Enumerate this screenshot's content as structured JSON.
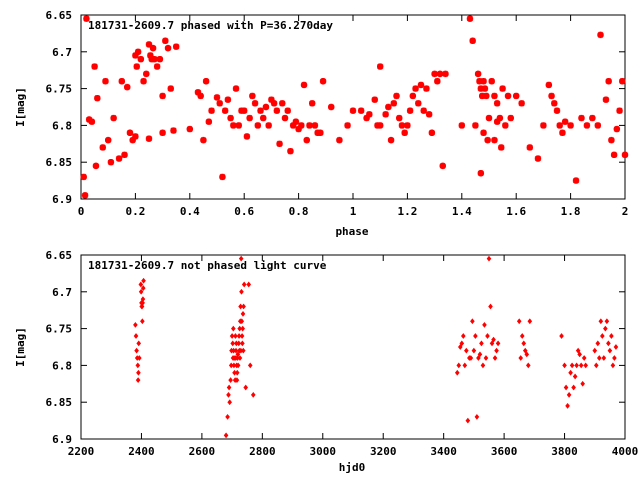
{
  "chart_data": [
    {
      "type": "scatter",
      "title": "181731-2609.7 phased with P=36.270day",
      "xlabel": "phase",
      "ylabel": "I[mag]",
      "xlim": [
        0,
        2
      ],
      "ylim": [
        6.65,
        6.9
      ],
      "y_inverted": true,
      "grid": false,
      "legend": "none",
      "marker_color": "#ff0000",
      "x_ticks": [
        "0",
        "0.2",
        "0.4",
        "0.6",
        "0.8",
        "1",
        "1.2",
        "1.4",
        "1.6",
        "1.8",
        "2"
      ],
      "y_ticks": [
        "6.65",
        "6.7",
        "6.75",
        "6.8",
        "6.85",
        "6.9"
      ],
      "points": [
        [
          0.01,
          6.87
        ],
        [
          0.015,
          6.895
        ],
        [
          0.02,
          6.655
        ],
        [
          0.03,
          6.792
        ],
        [
          0.04,
          6.795
        ],
        [
          0.05,
          6.72
        ],
        [
          0.055,
          6.855
        ],
        [
          0.06,
          6.763
        ],
        [
          0.08,
          6.83
        ],
        [
          0.09,
          6.74
        ],
        [
          0.1,
          6.82
        ],
        [
          0.11,
          6.85
        ],
        [
          0.12,
          6.79
        ],
        [
          0.14,
          6.845
        ],
        [
          0.15,
          6.74
        ],
        [
          0.16,
          6.84
        ],
        [
          0.17,
          6.748
        ],
        [
          0.18,
          6.81
        ],
        [
          0.19,
          6.82
        ],
        [
          0.2,
          6.705
        ],
        [
          0.205,
          6.72
        ],
        [
          0.21,
          6.7
        ],
        [
          0.22,
          6.71
        ],
        [
          0.23,
          6.74
        ],
        [
          0.24,
          6.73
        ],
        [
          0.25,
          6.69
        ],
        [
          0.255,
          6.705
        ],
        [
          0.26,
          6.71
        ],
        [
          0.265,
          6.695
        ],
        [
          0.27,
          6.71
        ],
        [
          0.28,
          6.72
        ],
        [
          0.29,
          6.71
        ],
        [
          0.3,
          6.76
        ],
        [
          0.31,
          6.685
        ],
        [
          0.32,
          6.695
        ],
        [
          0.33,
          6.75
        ],
        [
          0.34,
          6.807
        ],
        [
          0.35,
          6.693
        ],
        [
          0.2,
          6.815
        ],
        [
          0.25,
          6.818
        ],
        [
          0.3,
          6.81
        ],
        [
          0.4,
          6.805
        ],
        [
          0.43,
          6.755
        ],
        [
          0.44,
          6.76
        ],
        [
          0.45,
          6.82
        ],
        [
          0.46,
          6.74
        ],
        [
          0.47,
          6.795
        ],
        [
          0.48,
          6.78
        ],
        [
          0.5,
          6.762
        ],
        [
          0.51,
          6.77
        ],
        [
          0.52,
          6.87
        ],
        [
          0.53,
          6.78
        ],
        [
          0.54,
          6.765
        ],
        [
          0.55,
          6.79
        ],
        [
          0.56,
          6.8
        ],
        [
          0.57,
          6.75
        ],
        [
          0.58,
          6.8
        ],
        [
          0.59,
          6.78
        ],
        [
          0.6,
          6.78
        ],
        [
          0.61,
          6.815
        ],
        [
          0.62,
          6.79
        ],
        [
          0.63,
          6.76
        ],
        [
          0.64,
          6.77
        ],
        [
          0.65,
          6.8
        ],
        [
          0.66,
          6.78
        ],
        [
          0.67,
          6.79
        ],
        [
          0.68,
          6.775
        ],
        [
          0.69,
          6.8
        ],
        [
          0.7,
          6.765
        ],
        [
          0.71,
          6.77
        ],
        [
          0.72,
          6.78
        ],
        [
          0.73,
          6.825
        ],
        [
          0.74,
          6.77
        ],
        [
          0.75,
          6.79
        ],
        [
          0.76,
          6.78
        ],
        [
          0.77,
          6.835
        ],
        [
          0.78,
          6.8
        ],
        [
          0.79,
          6.795
        ],
        [
          0.8,
          6.805
        ],
        [
          0.81,
          6.8
        ],
        [
          0.82,
          6.745
        ],
        [
          0.83,
          6.82
        ],
        [
          0.84,
          6.8
        ],
        [
          0.85,
          6.77
        ],
        [
          0.86,
          6.8
        ],
        [
          0.87,
          6.81
        ],
        [
          0.88,
          6.81
        ],
        [
          0.89,
          6.74
        ],
        [
          0.92,
          6.775
        ],
        [
          0.95,
          6.82
        ],
        [
          0.98,
          6.8
        ],
        [
          1.0,
          6.78
        ],
        [
          1.03,
          6.78
        ],
        [
          1.05,
          6.79
        ],
        [
          1.06,
          6.785
        ],
        [
          1.08,
          6.765
        ],
        [
          1.09,
          6.8
        ],
        [
          1.1,
          6.8
        ],
        [
          1.1,
          6.72
        ],
        [
          1.12,
          6.785
        ],
        [
          1.13,
          6.775
        ],
        [
          1.14,
          6.82
        ],
        [
          1.15,
          6.77
        ],
        [
          1.16,
          6.76
        ],
        [
          1.17,
          6.79
        ],
        [
          1.18,
          6.8
        ],
        [
          1.19,
          6.81
        ],
        [
          1.2,
          6.8
        ],
        [
          1.21,
          6.78
        ],
        [
          1.22,
          6.76
        ],
        [
          1.23,
          6.75
        ],
        [
          1.24,
          6.77
        ],
        [
          1.25,
          6.745
        ],
        [
          1.26,
          6.78
        ],
        [
          1.27,
          6.75
        ],
        [
          1.28,
          6.785
        ],
        [
          1.29,
          6.81
        ],
        [
          1.3,
          6.73
        ],
        [
          1.31,
          6.74
        ],
        [
          1.32,
          6.73
        ],
        [
          1.33,
          6.855
        ],
        [
          1.34,
          6.73
        ],
        [
          1.4,
          6.8
        ],
        [
          1.43,
          6.655
        ],
        [
          1.44,
          6.685
        ],
        [
          1.45,
          6.8
        ],
        [
          1.46,
          6.73
        ],
        [
          1.465,
          6.74
        ],
        [
          1.47,
          6.75
        ],
        [
          1.475,
          6.76
        ],
        [
          1.48,
          6.74
        ],
        [
          1.485,
          6.75
        ],
        [
          1.49,
          6.76
        ],
        [
          1.495,
          6.82
        ],
        [
          1.5,
          6.79
        ],
        [
          1.51,
          6.74
        ],
        [
          1.52,
          6.76
        ],
        [
          1.53,
          6.77
        ],
        [
          1.54,
          6.79
        ],
        [
          1.55,
          6.75
        ],
        [
          1.56,
          6.8
        ],
        [
          1.57,
          6.76
        ],
        [
          1.58,
          6.79
        ],
        [
          1.6,
          6.76
        ],
        [
          1.62,
          6.77
        ],
        [
          1.65,
          6.83
        ],
        [
          1.68,
          6.845
        ],
        [
          1.7,
          6.8
        ],
        [
          1.72,
          6.745
        ],
        [
          1.73,
          6.76
        ],
        [
          1.74,
          6.77
        ],
        [
          1.75,
          6.78
        ],
        [
          1.76,
          6.8
        ],
        [
          1.77,
          6.81
        ],
        [
          1.78,
          6.795
        ],
        [
          1.8,
          6.8
        ],
        [
          1.82,
          6.875
        ],
        [
          1.84,
          6.79
        ],
        [
          1.86,
          6.8
        ],
        [
          1.88,
          6.79
        ],
        [
          1.9,
          6.8
        ],
        [
          1.91,
          6.677
        ],
        [
          1.93,
          6.765
        ],
        [
          1.94,
          6.74
        ],
        [
          1.95,
          6.82
        ],
        [
          1.96,
          6.84
        ],
        [
          1.97,
          6.805
        ],
        [
          1.98,
          6.78
        ],
        [
          1.99,
          6.74
        ],
        [
          2.0,
          6.84
        ],
        [
          1.47,
          6.865
        ],
        [
          1.48,
          6.81
        ],
        [
          1.52,
          6.82
        ],
        [
          1.53,
          6.795
        ],
        [
          1.545,
          6.83
        ]
      ]
    },
    {
      "type": "scatter",
      "title": "181731-2609.7 not phased light curve",
      "xlabel": "hjd0",
      "ylabel": "I[mag]",
      "xlim": [
        2200,
        4000
      ],
      "ylim": [
        6.65,
        6.9
      ],
      "y_inverted": true,
      "grid": false,
      "legend": "none",
      "marker_color": "#ff0000",
      "x_ticks": [
        "2200",
        "2400",
        "2600",
        "2800",
        "3000",
        "3200",
        "3400",
        "3600",
        "3800",
        "4000"
      ],
      "y_ticks": [
        "6.65",
        "6.7",
        "6.75",
        "6.8",
        "6.85",
        "6.9"
      ],
      "points": [
        [
          2380,
          6.745
        ],
        [
          2382,
          6.76
        ],
        [
          2384,
          6.78
        ],
        [
          2386,
          6.79
        ],
        [
          2388,
          6.8
        ],
        [
          2389,
          6.82
        ],
        [
          2390,
          6.81
        ],
        [
          2391,
          6.77
        ],
        [
          2393,
          6.79
        ],
        [
          2398,
          6.69
        ],
        [
          2399,
          6.7
        ],
        [
          2400,
          6.715
        ],
        [
          2401,
          6.72
        ],
        [
          2402,
          6.72
        ],
        [
          2403,
          6.74
        ],
        [
          2404,
          6.715
        ],
        [
          2405,
          6.71
        ],
        [
          2406,
          6.695
        ],
        [
          2407,
          6.685
        ],
        [
          2680,
          6.895
        ],
        [
          2685,
          6.87
        ],
        [
          2688,
          6.84
        ],
        [
          2690,
          6.83
        ],
        [
          2692,
          6.85
        ],
        [
          2695,
          6.82
        ],
        [
          2697,
          6.8
        ],
        [
          2698,
          6.78
        ],
        [
          2700,
          6.76
        ],
        [
          2702,
          6.77
        ],
        [
          2703,
          6.79
        ],
        [
          2704,
          6.75
        ],
        [
          2705,
          6.78
        ],
        [
          2706,
          6.8
        ],
        [
          2707,
          6.79
        ],
        [
          2708,
          6.81
        ],
        [
          2710,
          6.82
        ],
        [
          2711,
          6.76
        ],
        [
          2712,
          6.79
        ],
        [
          2713,
          6.78
        ],
        [
          2714,
          6.77
        ],
        [
          2715,
          6.8
        ],
        [
          2716,
          6.82
        ],
        [
          2717,
          6.81
        ],
        [
          2718,
          6.79
        ],
        [
          2719,
          6.785
        ],
        [
          2720,
          6.8
        ],
        [
          2722,
          6.77
        ],
        [
          2723,
          6.76
        ],
        [
          2724,
          6.78
        ],
        [
          2725,
          6.75
        ],
        [
          2726,
          6.79
        ],
        [
          2727,
          6.74
        ],
        [
          2728,
          6.72
        ],
        [
          2729,
          6.78
        ],
        [
          2730,
          6.655
        ],
        [
          2731,
          6.7
        ],
        [
          2732,
          6.74
        ],
        [
          2733,
          6.76
        ],
        [
          2734,
          6.77
        ],
        [
          2735,
          6.75
        ],
        [
          2736,
          6.73
        ],
        [
          2737,
          6.78
        ],
        [
          2738,
          6.72
        ],
        [
          2740,
          6.69
        ],
        [
          2745,
          6.83
        ],
        [
          2755,
          6.69
        ],
        [
          2760,
          6.8
        ],
        [
          2770,
          6.84
        ],
        [
          3445,
          6.81
        ],
        [
          3450,
          6.8
        ],
        [
          3455,
          6.775
        ],
        [
          3460,
          6.77
        ],
        [
          3465,
          6.76
        ],
        [
          3470,
          6.8
        ],
        [
          3475,
          6.78
        ],
        [
          3480,
          6.875
        ],
        [
          3485,
          6.79
        ],
        [
          3490,
          6.79
        ],
        [
          3495,
          6.74
        ],
        [
          3500,
          6.78
        ],
        [
          3505,
          6.76
        ],
        [
          3510,
          6.87
        ],
        [
          3515,
          6.79
        ],
        [
          3520,
          6.785
        ],
        [
          3525,
          6.77
        ],
        [
          3530,
          6.8
        ],
        [
          3535,
          6.745
        ],
        [
          3540,
          6.79
        ],
        [
          3545,
          6.76
        ],
        [
          3550,
          6.655
        ],
        [
          3555,
          6.72
        ],
        [
          3560,
          6.77
        ],
        [
          3565,
          6.765
        ],
        [
          3570,
          6.79
        ],
        [
          3575,
          6.78
        ],
        [
          3580,
          6.77
        ],
        [
          3650,
          6.74
        ],
        [
          3655,
          6.79
        ],
        [
          3660,
          6.76
        ],
        [
          3665,
          6.77
        ],
        [
          3670,
          6.78
        ],
        [
          3675,
          6.785
        ],
        [
          3680,
          6.8
        ],
        [
          3685,
          6.74
        ],
        [
          3790,
          6.76
        ],
        [
          3800,
          6.8
        ],
        [
          3805,
          6.83
        ],
        [
          3810,
          6.855
        ],
        [
          3815,
          6.84
        ],
        [
          3820,
          6.81
        ],
        [
          3825,
          6.8
        ],
        [
          3830,
          6.83
        ],
        [
          3835,
          6.815
        ],
        [
          3840,
          6.8
        ],
        [
          3845,
          6.78
        ],
        [
          3850,
          6.785
        ],
        [
          3855,
          6.8
        ],
        [
          3860,
          6.825
        ],
        [
          3865,
          6.79
        ],
        [
          3870,
          6.8
        ],
        [
          3900,
          6.78
        ],
        [
          3905,
          6.8
        ],
        [
          3910,
          6.77
        ],
        [
          3915,
          6.79
        ],
        [
          3920,
          6.74
        ],
        [
          3925,
          6.76
        ],
        [
          3930,
          6.79
        ],
        [
          3935,
          6.75
        ],
        [
          3940,
          6.74
        ],
        [
          3945,
          6.77
        ],
        [
          3950,
          6.78
        ],
        [
          3955,
          6.76
        ],
        [
          3960,
          6.8
        ],
        [
          3965,
          6.79
        ],
        [
          3970,
          6.775
        ]
      ]
    }
  ]
}
